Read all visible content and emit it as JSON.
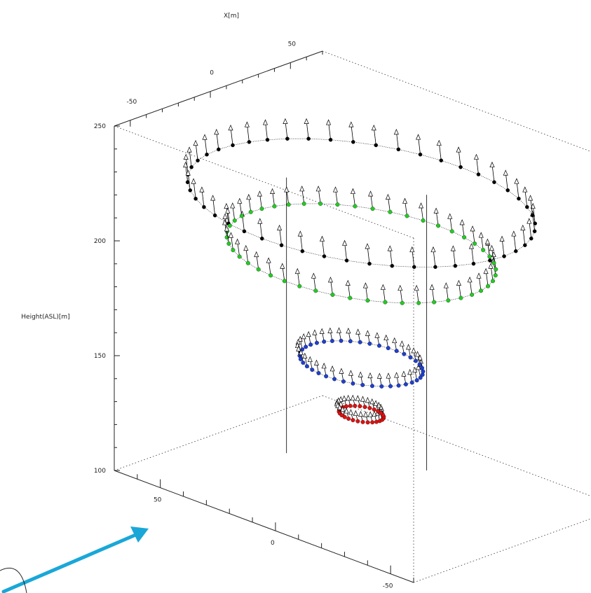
{
  "chart_data": {
    "type": "scatter",
    "dimensions": 3,
    "title": "",
    "axes": {
      "x": {
        "label": "X[m]",
        "range": [
          -60,
          70
        ],
        "ticks": [
          -50,
          0,
          50
        ]
      },
      "y": {
        "label": "",
        "range": [
          -60,
          70
        ],
        "ticks": [
          50,
          0,
          -50
        ]
      },
      "z": {
        "label": "Height(ASL)[m]",
        "range": [
          100,
          250
        ],
        "ticks": [
          250,
          200,
          150,
          100
        ]
      }
    },
    "grid": false,
    "legend": "none",
    "series": [
      {
        "color": "#000000",
        "marker": "dot+cone",
        "description_only_visual": true,
        "center": [
          8,
          10
        ],
        "radius": 62,
        "height": 222
      },
      {
        "color": "#22cc22",
        "marker": "dot+cone",
        "center": [
          8,
          10
        ],
        "radius": 48,
        "height": 200
      },
      {
        "color": "#1f3fd0",
        "marker": "dot+cone",
        "center": [
          8,
          10
        ],
        "radius": 22,
        "height": 152
      },
      {
        "color": "#e01010",
        "marker": "dot+cone",
        "center": [
          8,
          10
        ],
        "radius": 8,
        "height": 130
      }
    ],
    "annotation_arrow": {
      "color": "#1aa7d8"
    }
  }
}
